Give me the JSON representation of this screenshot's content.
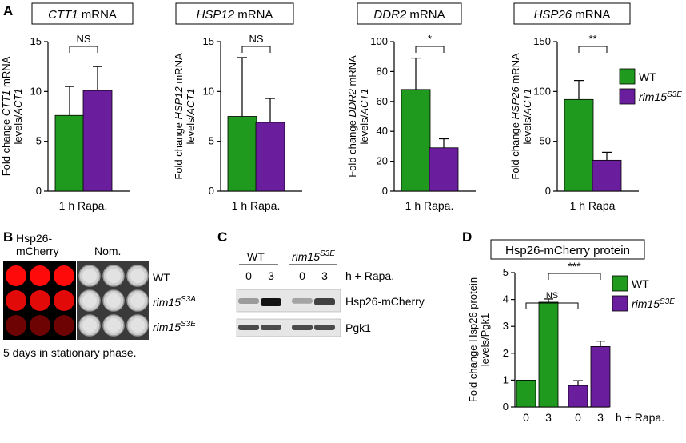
{
  "panels": {
    "A": "A",
    "B": "B",
    "C": "C",
    "D": "D"
  },
  "colors": {
    "wt": "#1f9a1f",
    "mut": "#6a1e9e"
  },
  "legend": {
    "wt": "WT",
    "mut": "rim15",
    "mut_sup": "S3E"
  },
  "chart_data": [
    {
      "type": "bar",
      "title_gene": "CTT1",
      "title_rest": " mRNA",
      "ylabel_line1_a": "Fold change ",
      "ylabel_line1_i": "CTT1",
      "ylabel_line1_b": " mRNA",
      "ylabel_line2_a": "levels/",
      "ylabel_line2_i": "ACT1",
      "xlabel": "1 h Rapa.",
      "ylim": [
        0,
        15
      ],
      "yticks": [
        "0",
        "5",
        "10",
        "15"
      ],
      "series": [
        {
          "name": "WT",
          "values": [
            7.6
          ],
          "error": [
            2.9
          ]
        },
        {
          "name": "rim15S3E",
          "values": [
            10.1
          ],
          "error": [
            2.4
          ]
        }
      ],
      "sig": "NS"
    },
    {
      "type": "bar",
      "title_gene": "HSP12",
      "title_rest": " mRNA",
      "ylabel_line1_a": "Fold change ",
      "ylabel_line1_i": "HSP12",
      "ylabel_line1_b": " mRNA",
      "ylabel_line2_a": "levels/",
      "ylabel_line2_i": "ACT1",
      "xlabel": "1 h Rapa.",
      "ylim": [
        0,
        15
      ],
      "yticks": [
        "0",
        "5",
        "10",
        "15"
      ],
      "series": [
        {
          "name": "WT",
          "values": [
            7.5
          ],
          "error": [
            5.9
          ]
        },
        {
          "name": "rim15S3E",
          "values": [
            6.9
          ],
          "error": [
            2.4
          ]
        }
      ],
      "sig": "NS"
    },
    {
      "type": "bar",
      "title_gene": "DDR2",
      "title_rest": " mRNA",
      "ylabel_line1_a": "Fold change ",
      "ylabel_line1_i": "DDR2",
      "ylabel_line1_b": " mRNA",
      "ylabel_line2_a": "levels/",
      "ylabel_line2_i": "ACT1",
      "xlabel": "1 h Rapa.",
      "ylim": [
        0,
        100
      ],
      "yticks": [
        "0",
        "20",
        "40",
        "60",
        "80",
        "100"
      ],
      "series": [
        {
          "name": "WT",
          "values": [
            68
          ],
          "error": [
            21
          ]
        },
        {
          "name": "rim15S3E",
          "values": [
            29
          ],
          "error": [
            6
          ]
        }
      ],
      "sig": "*"
    },
    {
      "type": "bar",
      "title_gene": "HSP26",
      "title_rest": " mRNA",
      "ylabel_line1_a": "Fold change ",
      "ylabel_line1_i": "HSP26",
      "ylabel_line1_b": " mRNA",
      "ylabel_line2_a": "levels/",
      "ylabel_line2_i": "ACT1",
      "xlabel": "1 h Rapa",
      "ylim": [
        0,
        150
      ],
      "yticks": [
        "0",
        "50",
        "100",
        "150"
      ],
      "series": [
        {
          "name": "WT",
          "values": [
            92
          ],
          "error": [
            19
          ]
        },
        {
          "name": "rim15S3E",
          "values": [
            31
          ],
          "error": [
            8
          ]
        }
      ],
      "sig": "**"
    },
    {
      "type": "bar",
      "title": "Hsp26-mCherry protein",
      "ylabel_line1": "Fold change Hsp26 protein",
      "ylabel_line2": "levels/Pgk1",
      "ylim": [
        0,
        5
      ],
      "yticks": [
        "0",
        "1",
        "2",
        "3",
        "4",
        "5"
      ],
      "categories": [
        "0",
        "3",
        "0",
        "3"
      ],
      "x_suffix": "h + Rapa.",
      "values": [
        1.0,
        3.9,
        0.8,
        2.25
      ],
      "errors": [
        0,
        0.12,
        0.18,
        0.2
      ],
      "bar_series": [
        "WT",
        "WT",
        "rim15S3E",
        "rim15S3E"
      ],
      "sig_ns": "NS",
      "sig_star": "***"
    }
  ],
  "panel_b": {
    "col1_line1": "Hsp26-",
    "col1_line2": "mCherry",
    "col2": "Nom.",
    "row1": "WT",
    "row2": "rim15",
    "row2_sup": "S3A",
    "row3": "rim15",
    "row3_sup": "S3E",
    "caption": "5 days in stationary phase.",
    "spot_intensity": [
      [
        1,
        1,
        1
      ],
      [
        0.85,
        0.85,
        0.85
      ],
      [
        0.25,
        0.25,
        0.25
      ]
    ]
  },
  "panel_c": {
    "wt": "WT",
    "mut": "rim15",
    "mut_sup": "S3E",
    "lanes": [
      "0",
      "3",
      "0",
      "3"
    ],
    "time_label": "h + Rapa.",
    "blot1": "Hsp26-mCherry",
    "blot2": "Pgk1",
    "band_intensity": [
      0.25,
      1,
      0.2,
      0.75
    ]
  }
}
